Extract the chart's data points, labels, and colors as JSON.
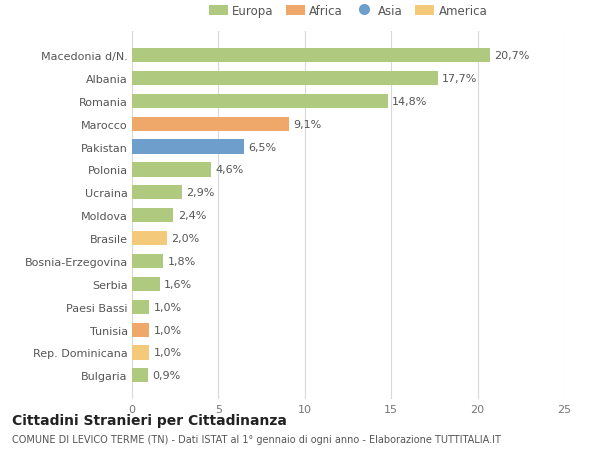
{
  "categories": [
    "Bulgaria",
    "Rep. Dominicana",
    "Tunisia",
    "Paesi Bassi",
    "Serbia",
    "Bosnia-Erzegovina",
    "Brasile",
    "Moldova",
    "Ucraina",
    "Polonia",
    "Pakistan",
    "Marocco",
    "Romania",
    "Albania",
    "Macedonia d/N."
  ],
  "values": [
    0.9,
    1.0,
    1.0,
    1.0,
    1.6,
    1.8,
    2.0,
    2.4,
    2.9,
    4.6,
    6.5,
    9.1,
    14.8,
    17.7,
    20.7
  ],
  "labels": [
    "0,9%",
    "1,0%",
    "1,0%",
    "1,0%",
    "1,6%",
    "1,8%",
    "2,0%",
    "2,4%",
    "2,9%",
    "4,6%",
    "6,5%",
    "9,1%",
    "14,8%",
    "17,7%",
    "20,7%"
  ],
  "colors": [
    "#afc97e",
    "#f5c97a",
    "#f0a86a",
    "#afc97e",
    "#afc97e",
    "#afc97e",
    "#f5c97a",
    "#afc97e",
    "#afc97e",
    "#afc97e",
    "#6d9ecc",
    "#f0a86a",
    "#afc97e",
    "#afc97e",
    "#afc97e"
  ],
  "legend_labels": [
    "Europa",
    "Africa",
    "Asia",
    "America"
  ],
  "legend_colors": [
    "#afc97e",
    "#f0a86a",
    "#6d9ecc",
    "#f5c97a"
  ],
  "xlim": [
    0,
    25
  ],
  "xticks": [
    0,
    5,
    10,
    15,
    20,
    25
  ],
  "title": "Cittadini Stranieri per Cittadinanza",
  "subtitle": "COMUNE DI LEVICO TERME (TN) - Dati ISTAT al 1° gennaio di ogni anno - Elaborazione TUTTITALIA.IT",
  "bg_color": "#ffffff",
  "grid_color": "#d8d8d8",
  "bar_height": 0.62,
  "label_fontsize": 8,
  "tick_fontsize": 8,
  "title_fontsize": 10,
  "subtitle_fontsize": 7
}
